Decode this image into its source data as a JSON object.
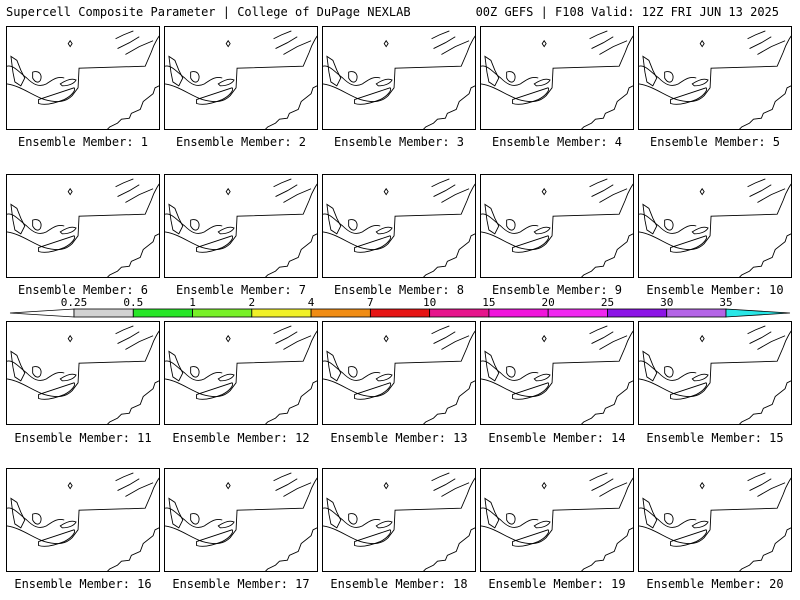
{
  "header": {
    "left": "Supercell Composite Parameter | College of DuPage NEXLAB",
    "right": "00Z GEFS | F108 Valid: 12Z FRI JUN 13 2025"
  },
  "member_label_prefix": "Ensemble Member: ",
  "members": [
    1,
    2,
    3,
    4,
    5,
    6,
    7,
    8,
    9,
    10,
    11,
    12,
    13,
    14,
    15,
    16,
    17,
    18,
    19,
    20
  ],
  "colorbar": {
    "ticks": [
      "0.25",
      "0.5",
      "1",
      "2",
      "4",
      "7",
      "10",
      "15",
      "20",
      "25",
      "30",
      "35"
    ],
    "colors": [
      "#d2d2d2",
      "#28e628",
      "#78f028",
      "#f0f028",
      "#f08c14",
      "#e61414",
      "#e6148c",
      "#f014dc",
      "#f028f0",
      "#8c14e6",
      "#b464e6",
      "#28e6e6"
    ]
  }
}
